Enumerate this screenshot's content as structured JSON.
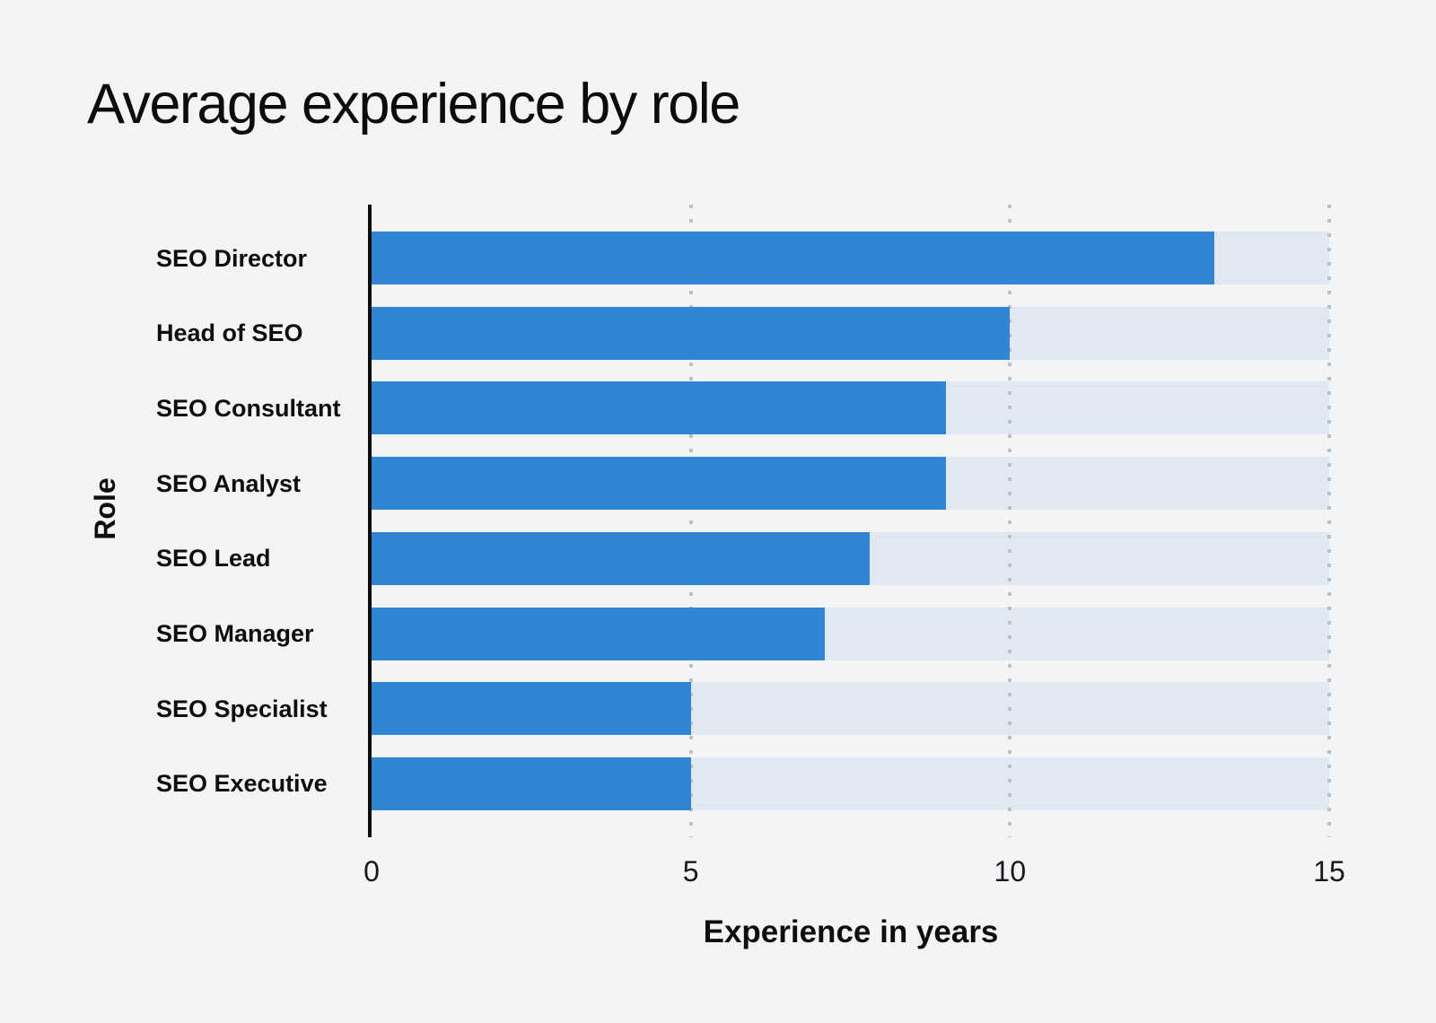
{
  "title": "Average experience by role",
  "colors": {
    "background": "#f2f4f6",
    "bar": "#3285d4",
    "bar_track": "#e2e8f1",
    "grid_dot": "#bdc0c4",
    "axis_line": "#0b0b0b"
  },
  "chart_data": {
    "type": "bar",
    "orientation": "horizontal",
    "title": "Average experience by role",
    "categories": [
      "SEO Director",
      "Head of SEO",
      "SEO Consultant",
      "SEO Analyst",
      "SEO Lead",
      "SEO Manager",
      "SEO Specialist",
      "SEO Executive"
    ],
    "values": [
      13.2,
      10,
      9,
      9,
      7.8,
      7.1,
      5,
      5
    ],
    "xlabel": "Experience in years",
    "ylabel": "Role",
    "xlim": [
      0,
      15
    ],
    "xticks": [
      0,
      5,
      10,
      15
    ],
    "grid": "vertical-dotted",
    "legend": false,
    "track_to_axis_max": true
  }
}
